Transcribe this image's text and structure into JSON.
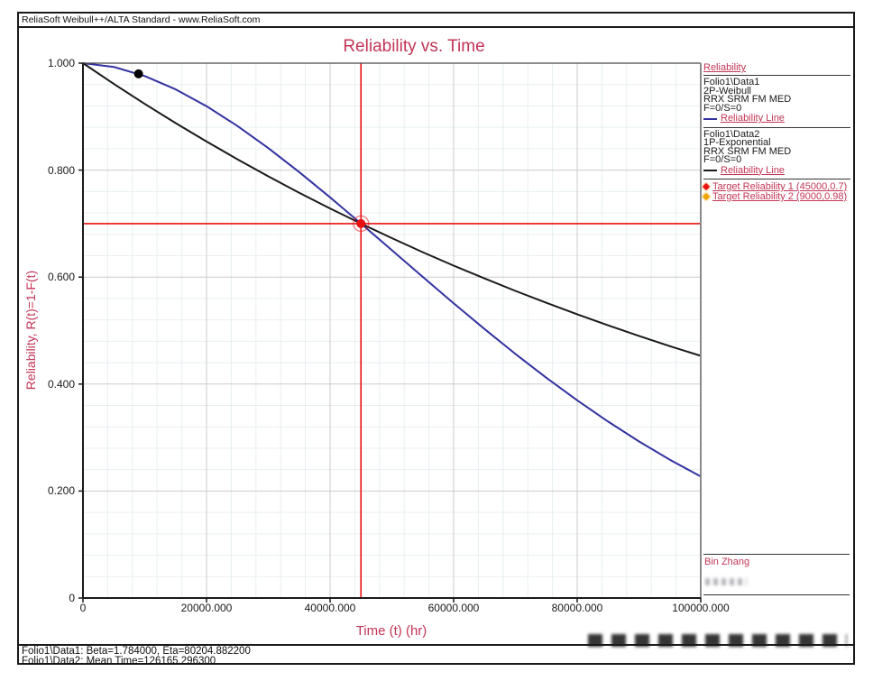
{
  "window": {
    "titlebar": "ReliaSoft Weibull++/ALTA Standard - www.ReliaSoft.com"
  },
  "chart_data": {
    "type": "line",
    "title": "Reliability vs. Time",
    "xlabel": "Time (t) (hr)",
    "ylabel": "Reliability, R(t)=1-F(t)",
    "xlim": [
      0,
      100000
    ],
    "ylim": [
      0,
      1
    ],
    "x_tick_values": [
      0,
      20000,
      40000,
      60000,
      80000,
      100000
    ],
    "x_tick_labels": [
      "0",
      "20000.000",
      "40000.000",
      "60000.000",
      "80000.000",
      "100000.000"
    ],
    "y_tick_values": [
      1.0,
      0.8,
      0.6,
      0.4,
      0.2,
      0
    ],
    "y_tick_labels": [
      "1.000",
      "0.800",
      "0.600",
      "0.400",
      "0.200",
      "0"
    ],
    "minor_grid": {
      "x_step": 4000,
      "y_step": 0.04
    },
    "grid": "on",
    "legend_position": "right",
    "series": [
      {
        "name": "Folio1\\Data1 Reliability Line",
        "model": "2P-Weibull",
        "params": {
          "beta": 1.784,
          "eta": 80204.8822
        },
        "color": "#3232a0",
        "x": [
          0,
          5000,
          10000,
          15000,
          20000,
          25000,
          30000,
          35000,
          40000,
          45000,
          50000,
          55000,
          60000,
          65000,
          70000,
          75000,
          80000,
          85000,
          90000,
          95000,
          100000
        ],
        "y": [
          1.0,
          0.993,
          0.9759,
          0.951,
          0.9195,
          0.8825,
          0.8412,
          0.7963,
          0.749,
          0.7,
          0.6502,
          0.6004,
          0.5511,
          0.5029,
          0.4564,
          0.4118,
          0.3696,
          0.3299,
          0.2928,
          0.2586,
          0.2272
        ]
      },
      {
        "name": "Folio1\\Data2 Reliability Line",
        "model": "1P-Exponential",
        "params": {
          "mean_time": 126165.2963
        },
        "color": "#1a1a1a",
        "x": [
          0,
          5000,
          10000,
          15000,
          20000,
          25000,
          30000,
          35000,
          40000,
          45000,
          50000,
          55000,
          60000,
          65000,
          70000,
          75000,
          80000,
          85000,
          90000,
          95000,
          100000
        ],
        "y": [
          1.0,
          0.9611,
          0.9238,
          0.8879,
          0.8534,
          0.8202,
          0.7884,
          0.7577,
          0.7283,
          0.7,
          0.6728,
          0.6466,
          0.6215,
          0.5974,
          0.5742,
          0.5519,
          0.5305,
          0.5098,
          0.49,
          0.4709,
          0.4527
        ]
      }
    ],
    "targets": [
      {
        "name": "Target Reliability 1",
        "x": 45000,
        "y": 0.7,
        "color": "#e81010",
        "vertical_extent": "full"
      },
      {
        "name": "Target Reliability 2",
        "x": 9000,
        "y": 0.98,
        "color": "#f0a societal500",
        "vertical_extent": "from-point"
      }
    ]
  },
  "legend": {
    "header": "Reliability",
    "entries": [
      {
        "folio": "Folio1\\Data1",
        "model": "2P-Weibull",
        "method": "RRX SRM FM MED",
        "fs": "F=0/S=0",
        "line_label": "Reliability Line",
        "line_color": "#3232a0"
      },
      {
        "folio": "Folio1\\Data2",
        "model": "1P-Exponential",
        "method": "RRX SRM FM MED",
        "fs": "F=0/S=0",
        "line_label": "Reliability Line",
        "line_color": "#1a1a1a"
      }
    ],
    "targets": [
      {
        "label": "Target Reliability 1 (45000,0.7)",
        "color": "#e81010"
      },
      {
        "label": "Target Reliability 2 (9000,0.98)",
        "color": "#f0a500"
      }
    ]
  },
  "annotations": {
    "analyst": "Bin Zhang"
  },
  "status": {
    "line1": "Folio1\\Data1: Beta=1.784000, Eta=80204.882200",
    "line2": "Folio1\\Data2: Mean Time=126165.296300"
  },
  "colors": {
    "accent_crimson": "#c23556",
    "weibull_line": "#3232a0",
    "exponential_line": "#1a1a1a",
    "target1_red": "#e81010",
    "target2_orange": "#f0a500",
    "grid_major": "#cbcbce",
    "grid_minor": "#e8eff1"
  }
}
